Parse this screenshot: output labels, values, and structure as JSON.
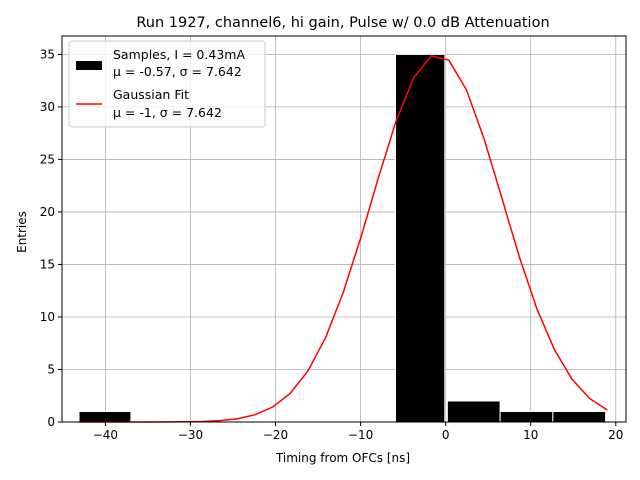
{
  "chart_data": {
    "type": "bar",
    "title": "Run 1927, channel6, hi gain, Pulse w/ 0.0 dB Attenuation",
    "xlabel": "Timing from OFCs [ns]",
    "ylabel": "Entries",
    "xlim": [
      -45.1,
      21.2
    ],
    "ylim": [
      0,
      36.75
    ],
    "xticks": [
      -40,
      -30,
      -20,
      -10,
      0,
      10,
      20
    ],
    "xtick_labels": [
      "−40",
      "−30",
      "−20",
      "−10",
      "0",
      "10",
      "20"
    ],
    "yticks": [
      0,
      5,
      10,
      15,
      20,
      25,
      30,
      35
    ],
    "ytick_labels": [
      "0",
      "5",
      "10",
      "15",
      "20",
      "25",
      "30",
      "35"
    ],
    "grid": true,
    "legend_location": "upper-left",
    "histogram": {
      "name": "Samples, I = 0.43mA",
      "stats": "μ = -0.57, σ = 7.642",
      "color": "#000000",
      "bins": [
        {
          "x0": -43.1,
          "x1": -37.0,
          "count": 1
        },
        {
          "x0": -5.9,
          "x1": -0.1,
          "count": 35
        },
        {
          "x0": 0.2,
          "x1": 6.4,
          "count": 2
        },
        {
          "x0": 6.4,
          "x1": 12.6,
          "count": 1
        },
        {
          "x0": 12.6,
          "x1": 18.8,
          "count": 1
        }
      ]
    },
    "fit": {
      "name": "Gaussian Fit",
      "stats": "μ = -1, σ = 7.642",
      "color": "#ff0000",
      "mu": -1,
      "sigma": 7.642,
      "amplitude": 35,
      "x_range": [
        -43.1,
        19.0
      ]
    }
  }
}
